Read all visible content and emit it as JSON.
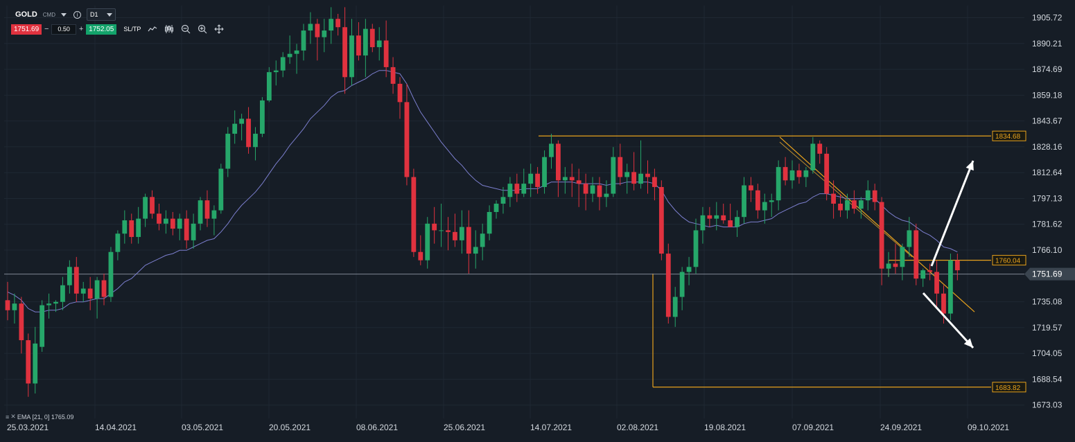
{
  "toolbar": {
    "symbol": "GOLD",
    "exchange": "CMD",
    "timeframe": "D1",
    "sell_price": "1751.69",
    "minus_label": "−",
    "quantity": "0.50",
    "plus_label": "+",
    "buy_price": "1752.05",
    "sltp_label": "SL/TP",
    "icons": [
      "line-chart-icon",
      "candles-icon",
      "zoom-out-icon",
      "zoom-in-icon",
      "crosshair-move-icon"
    ]
  },
  "legend": {
    "ema_label": "EMA [21, 0] 1765.09"
  },
  "colors": {
    "background": "#161d26",
    "bull": "#26a76a",
    "bear": "#e0323f",
    "ema": "#7c7fcf",
    "levels": "#e8a21c",
    "current_price": "#8f98a3"
  },
  "chart_data": {
    "type": "candlestick",
    "title": "",
    "ylim": [
      1665,
      1913
    ],
    "y_ticks": [
      "1905.72",
      "1890.21",
      "1874.69",
      "1859.18",
      "1843.67",
      "1828.16",
      "1812.64",
      "1797.13",
      "1781.62",
      "1766.10",
      "1735.08",
      "1719.57",
      "1704.05",
      "1688.54",
      "1673.03"
    ],
    "x_ticks": [
      "25.03.2021",
      "14.04.2021",
      "03.05.2021",
      "20.05.2021",
      "08.06.2021",
      "25.06.2021",
      "14.07.2021",
      "02.08.2021",
      "19.08.2021",
      "07.09.2021",
      "24.09.2021",
      "09.10.2021"
    ],
    "current_price": "1751.69",
    "level_labels": [
      "1834.68",
      "1760.04",
      "1683.82"
    ],
    "ema_label": "EMA [21, 0] 1765.09",
    "candles": [
      [
        1736,
        1747,
        1724,
        1730
      ],
      [
        1730,
        1740,
        1722,
        1734
      ],
      [
        1734,
        1738,
        1704,
        1712
      ],
      [
        1712,
        1716,
        1678,
        1686
      ],
      [
        1686,
        1720,
        1680,
        1710
      ],
      [
        1708,
        1736,
        1705,
        1733
      ],
      [
        1733,
        1740,
        1725,
        1734
      ],
      [
        1734,
        1736,
        1729,
        1735
      ],
      [
        1735,
        1750,
        1730,
        1745
      ],
      [
        1745,
        1760,
        1740,
        1756
      ],
      [
        1756,
        1762,
        1735,
        1740
      ],
      [
        1740,
        1747,
        1735,
        1743
      ],
      [
        1743,
        1750,
        1730,
        1737
      ],
      [
        1737,
        1750,
        1725,
        1748
      ],
      [
        1748,
        1752,
        1733,
        1738
      ],
      [
        1738,
        1768,
        1735,
        1765
      ],
      [
        1765,
        1778,
        1760,
        1776
      ],
      [
        1776,
        1790,
        1770,
        1784
      ],
      [
        1784,
        1788,
        1770,
        1774
      ],
      [
        1774,
        1792,
        1770,
        1785
      ],
      [
        1785,
        1800,
        1780,
        1798
      ],
      [
        1798,
        1802,
        1785,
        1788
      ],
      [
        1788,
        1794,
        1778,
        1782
      ],
      [
        1782,
        1790,
        1776,
        1785
      ],
      [
        1785,
        1789,
        1775,
        1779
      ],
      [
        1779,
        1788,
        1772,
        1785
      ],
      [
        1785,
        1790,
        1767,
        1772
      ],
      [
        1772,
        1788,
        1767,
        1782
      ],
      [
        1782,
        1798,
        1778,
        1796
      ],
      [
        1796,
        1802,
        1780,
        1785
      ],
      [
        1785,
        1793,
        1775,
        1790
      ],
      [
        1790,
        1818,
        1788,
        1815
      ],
      [
        1815,
        1840,
        1810,
        1836
      ],
      [
        1836,
        1850,
        1830,
        1842
      ],
      [
        1842,
        1848,
        1832,
        1845
      ],
      [
        1845,
        1852,
        1824,
        1828
      ],
      [
        1828,
        1840,
        1820,
        1836
      ],
      [
        1836,
        1858,
        1834,
        1856
      ],
      [
        1856,
        1876,
        1855,
        1873
      ],
      [
        1873,
        1880,
        1865,
        1874
      ],
      [
        1874,
        1885,
        1870,
        1882
      ],
      [
        1882,
        1895,
        1878,
        1884
      ],
      [
        1884,
        1890,
        1872,
        1886
      ],
      [
        1886,
        1902,
        1880,
        1898
      ],
      [
        1898,
        1909,
        1890,
        1902
      ],
      [
        1902,
        1905,
        1880,
        1894
      ],
      [
        1894,
        1905,
        1885,
        1898
      ],
      [
        1898,
        1912,
        1890,
        1905
      ],
      [
        1905,
        1908,
        1895,
        1900
      ],
      [
        1900,
        1912,
        1860,
        1870
      ],
      [
        1870,
        1905,
        1865,
        1895
      ],
      [
        1895,
        1903,
        1880,
        1883
      ],
      [
        1883,
        1905,
        1870,
        1899
      ],
      [
        1899,
        1902,
        1885,
        1888
      ],
      [
        1888,
        1900,
        1880,
        1892
      ],
      [
        1892,
        1904,
        1870,
        1876
      ],
      [
        1876,
        1882,
        1860,
        1866
      ],
      [
        1866,
        1870,
        1845,
        1855
      ],
      [
        1855,
        1866,
        1805,
        1810
      ],
      [
        1810,
        1815,
        1762,
        1765
      ],
      [
        1765,
        1775,
        1757,
        1760
      ],
      [
        1760,
        1786,
        1755,
        1782
      ],
      [
        1782,
        1792,
        1770,
        1778
      ],
      [
        1778,
        1794,
        1768,
        1778
      ],
      [
        1778,
        1786,
        1766,
        1777
      ],
      [
        1777,
        1788,
        1768,
        1772
      ],
      [
        1772,
        1790,
        1764,
        1780
      ],
      [
        1780,
        1790,
        1752,
        1764
      ],
      [
        1764,
        1778,
        1755,
        1768
      ],
      [
        1768,
        1782,
        1760,
        1776
      ],
      [
        1776,
        1793,
        1772,
        1789
      ],
      [
        1789,
        1796,
        1785,
        1794
      ],
      [
        1794,
        1804,
        1788,
        1798
      ],
      [
        1798,
        1810,
        1792,
        1806
      ],
      [
        1806,
        1812,
        1795,
        1800
      ],
      [
        1800,
        1815,
        1798,
        1806
      ],
      [
        1806,
        1818,
        1798,
        1812
      ],
      [
        1812,
        1816,
        1800,
        1804
      ],
      [
        1804,
        1826,
        1800,
        1822
      ],
      [
        1822,
        1836,
        1815,
        1830
      ],
      [
        1830,
        1832,
        1798,
        1808
      ],
      [
        1808,
        1816,
        1800,
        1810
      ],
      [
        1810,
        1818,
        1798,
        1808
      ],
      [
        1808,
        1815,
        1792,
        1806
      ],
      [
        1806,
        1812,
        1790,
        1800
      ],
      [
        1800,
        1810,
        1795,
        1805
      ],
      [
        1805,
        1810,
        1790,
        1798
      ],
      [
        1798,
        1808,
        1792,
        1800
      ],
      [
        1800,
        1828,
        1798,
        1822
      ],
      [
        1822,
        1830,
        1805,
        1810
      ],
      [
        1810,
        1818,
        1800,
        1813
      ],
      [
        1813,
        1825,
        1802,
        1806
      ],
      [
        1806,
        1832,
        1803,
        1812
      ],
      [
        1812,
        1820,
        1800,
        1810
      ],
      [
        1810,
        1815,
        1796,
        1804
      ],
      [
        1804,
        1808,
        1760,
        1764
      ],
      [
        1764,
        1770,
        1722,
        1726
      ],
      [
        1726,
        1744,
        1720,
        1738
      ],
      [
        1738,
        1756,
        1730,
        1753
      ],
      [
        1753,
        1762,
        1745,
        1756
      ],
      [
        1756,
        1785,
        1752,
        1778
      ],
      [
        1778,
        1792,
        1770,
        1787
      ],
      [
        1787,
        1792,
        1780,
        1785
      ],
      [
        1785,
        1795,
        1778,
        1787
      ],
      [
        1787,
        1794,
        1782,
        1784
      ],
      [
        1784,
        1794,
        1780,
        1780
      ],
      [
        1780,
        1790,
        1774,
        1786
      ],
      [
        1786,
        1810,
        1782,
        1805
      ],
      [
        1805,
        1810,
        1795,
        1802
      ],
      [
        1802,
        1806,
        1785,
        1790
      ],
      [
        1790,
        1800,
        1782,
        1795
      ],
      [
        1795,
        1800,
        1786,
        1796
      ],
      [
        1796,
        1820,
        1790,
        1816
      ],
      [
        1816,
        1822,
        1805,
        1808
      ],
      [
        1808,
        1820,
        1803,
        1814
      ],
      [
        1814,
        1818,
        1806,
        1810
      ],
      [
        1810,
        1816,
        1804,
        1814
      ],
      [
        1814,
        1834,
        1812,
        1830
      ],
      [
        1830,
        1832,
        1818,
        1824
      ],
      [
        1824,
        1828,
        1796,
        1800
      ],
      [
        1800,
        1808,
        1785,
        1794
      ],
      [
        1794,
        1800,
        1786,
        1790
      ],
      [
        1790,
        1800,
        1785,
        1796
      ],
      [
        1796,
        1802,
        1788,
        1791
      ],
      [
        1791,
        1798,
        1785,
        1796
      ],
      [
        1796,
        1808,
        1790,
        1802
      ],
      [
        1802,
        1806,
        1790,
        1795
      ],
      [
        1795,
        1798,
        1745,
        1755
      ],
      [
        1755,
        1765,
        1750,
        1758
      ],
      [
        1758,
        1770,
        1752,
        1756
      ],
      [
        1756,
        1770,
        1748,
        1768
      ],
      [
        1768,
        1786,
        1762,
        1778
      ],
      [
        1778,
        1782,
        1745,
        1749
      ],
      [
        1749,
        1755,
        1744,
        1754
      ],
      [
        1754,
        1758,
        1748,
        1753
      ],
      [
        1753,
        1760,
        1732,
        1740
      ],
      [
        1740,
        1745,
        1722,
        1728
      ],
      [
        1728,
        1764,
        1724,
        1760
      ],
      [
        1760,
        1764,
        1748,
        1754
      ]
    ],
    "ema21": [
      1741,
      1739,
      1736,
      1731,
      1729,
      1729,
      1730,
      1730,
      1731,
      1734,
      1735,
      1735,
      1736,
      1737,
      1737,
      1740,
      1743,
      1747,
      1749,
      1753,
      1757,
      1759,
      1761,
      1763,
      1764,
      1766,
      1766,
      1768,
      1770,
      1772,
      1773,
      1777,
      1782,
      1788,
      1793,
      1797,
      1801,
      1806,
      1812,
      1818,
      1823,
      1829,
      1834,
      1839,
      1845,
      1849,
      1853,
      1858,
      1861,
      1862,
      1865,
      1867,
      1869,
      1872,
      1874,
      1874,
      1873,
      1872,
      1866,
      1857,
      1849,
      1843,
      1837,
      1831,
      1826,
      1821,
      1817,
      1812,
      1808,
      1805,
      1804,
      1803,
      1802,
      1802,
      1802,
      1803,
      1803,
      1803,
      1805,
      1807,
      1807,
      1807,
      1807,
      1806,
      1806,
      1806,
      1806,
      1805,
      1806,
      1806,
      1807,
      1807,
      1807,
      1807,
      1806,
      1802,
      1795,
      1790,
      1786,
      1783,
      1782,
      1781,
      1780,
      1781,
      1780,
      1780,
      1780,
      1782,
      1783,
      1783,
      1784,
      1785,
      1788,
      1790,
      1792,
      1794,
      1795,
      1798,
      1800,
      1800,
      1799,
      1798,
      1797,
      1797,
      1797,
      1797,
      1797,
      1793,
      1789,
      1786,
      1784,
      1783,
      1780,
      1777,
      1775,
      1772,
      1768,
      1767,
      1765
    ]
  }
}
